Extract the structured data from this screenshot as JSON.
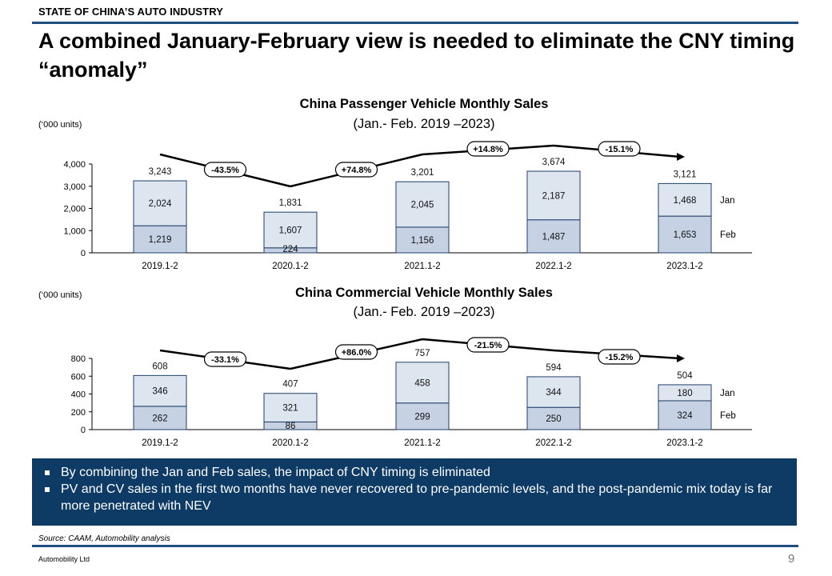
{
  "header": {
    "section": "STATE OF CHINA’S AUTO INDUSTRY",
    "headline": "A combined January-February view is needed to eliminate the CNY timing “anomaly”"
  },
  "colors": {
    "jan": "#dde5ef",
    "feb": "#c6d2e3",
    "bar_stroke": "#1f3f6a",
    "accent": "#0d3b66"
  },
  "chart_data": [
    {
      "type": "bar",
      "stacked": true,
      "title": "China Passenger Vehicle Monthly Sales",
      "subtitle": "(Jan.- Feb. 2019 –2023)",
      "units": "(‘000 units)",
      "categories": [
        "2019.1-2",
        "2020.1-2",
        "2021.1-2",
        "2022.1-2",
        "2023.1-2"
      ],
      "series": [
        {
          "name": "Feb",
          "values": [
            1219,
            224,
            1156,
            1487,
            1653
          ]
        },
        {
          "name": "Jan",
          "values": [
            2024,
            1607,
            2045,
            2187,
            1468
          ]
        }
      ],
      "totals": [
        "3,243",
        "1,831",
        "3,201",
        "3,674",
        "3,121"
      ],
      "value_labels": {
        "Feb": [
          "1,219",
          "224",
          "1,156",
          "1,487",
          "1,653"
        ],
        "Jan": [
          "2,024",
          "1,607",
          "2,045",
          "2,187",
          "1,468"
        ]
      },
      "changes": [
        "-43.5%",
        "+74.8%",
        "+14.8%",
        "-15.1%"
      ],
      "ylim": [
        0,
        4000
      ],
      "yticks": [
        0,
        1000,
        2000,
        3000,
        4000
      ],
      "ytick_labels": [
        "0",
        "1,000",
        "2,000",
        "3,000",
        "4,000"
      ],
      "legend": "right"
    },
    {
      "type": "bar",
      "stacked": true,
      "title": "China Commercial Vehicle Monthly Sales",
      "subtitle": "(Jan.- Feb. 2019 –2023)",
      "units": "(‘000 units)",
      "categories": [
        "2019.1-2",
        "2020.1-2",
        "2021.1-2",
        "2022.1-2",
        "2023.1-2"
      ],
      "series": [
        {
          "name": "Feb",
          "values": [
            262,
            86,
            299,
            250,
            324
          ]
        },
        {
          "name": "Jan",
          "values": [
            346,
            321,
            458,
            344,
            180
          ]
        }
      ],
      "totals": [
        "608",
        "407",
        "757",
        "594",
        "504"
      ],
      "value_labels": {
        "Feb": [
          "262",
          "86",
          "299",
          "250",
          "324"
        ],
        "Jan": [
          "346",
          "321",
          "458",
          "344",
          "180"
        ]
      },
      "changes": [
        "-33.1%",
        "+86.0%",
        "-21.5%",
        "-15.2%"
      ],
      "ylim": [
        0,
        800
      ],
      "yticks": [
        0,
        200,
        400,
        600,
        800
      ],
      "ytick_labels": [
        "0",
        "200",
        "400",
        "600",
        "800"
      ],
      "legend": "right"
    }
  ],
  "bullets": [
    "By combining the Jan and Feb sales, the impact of CNY timing is eliminated",
    "PV and CV sales in the first two months have never recovered to pre-pandemic levels, and the post-pandemic mix today is far more penetrated with NEV"
  ],
  "source": "Source: CAAM, Automobility analysis",
  "footer": {
    "company": "Automobility Ltd",
    "page": "9"
  }
}
